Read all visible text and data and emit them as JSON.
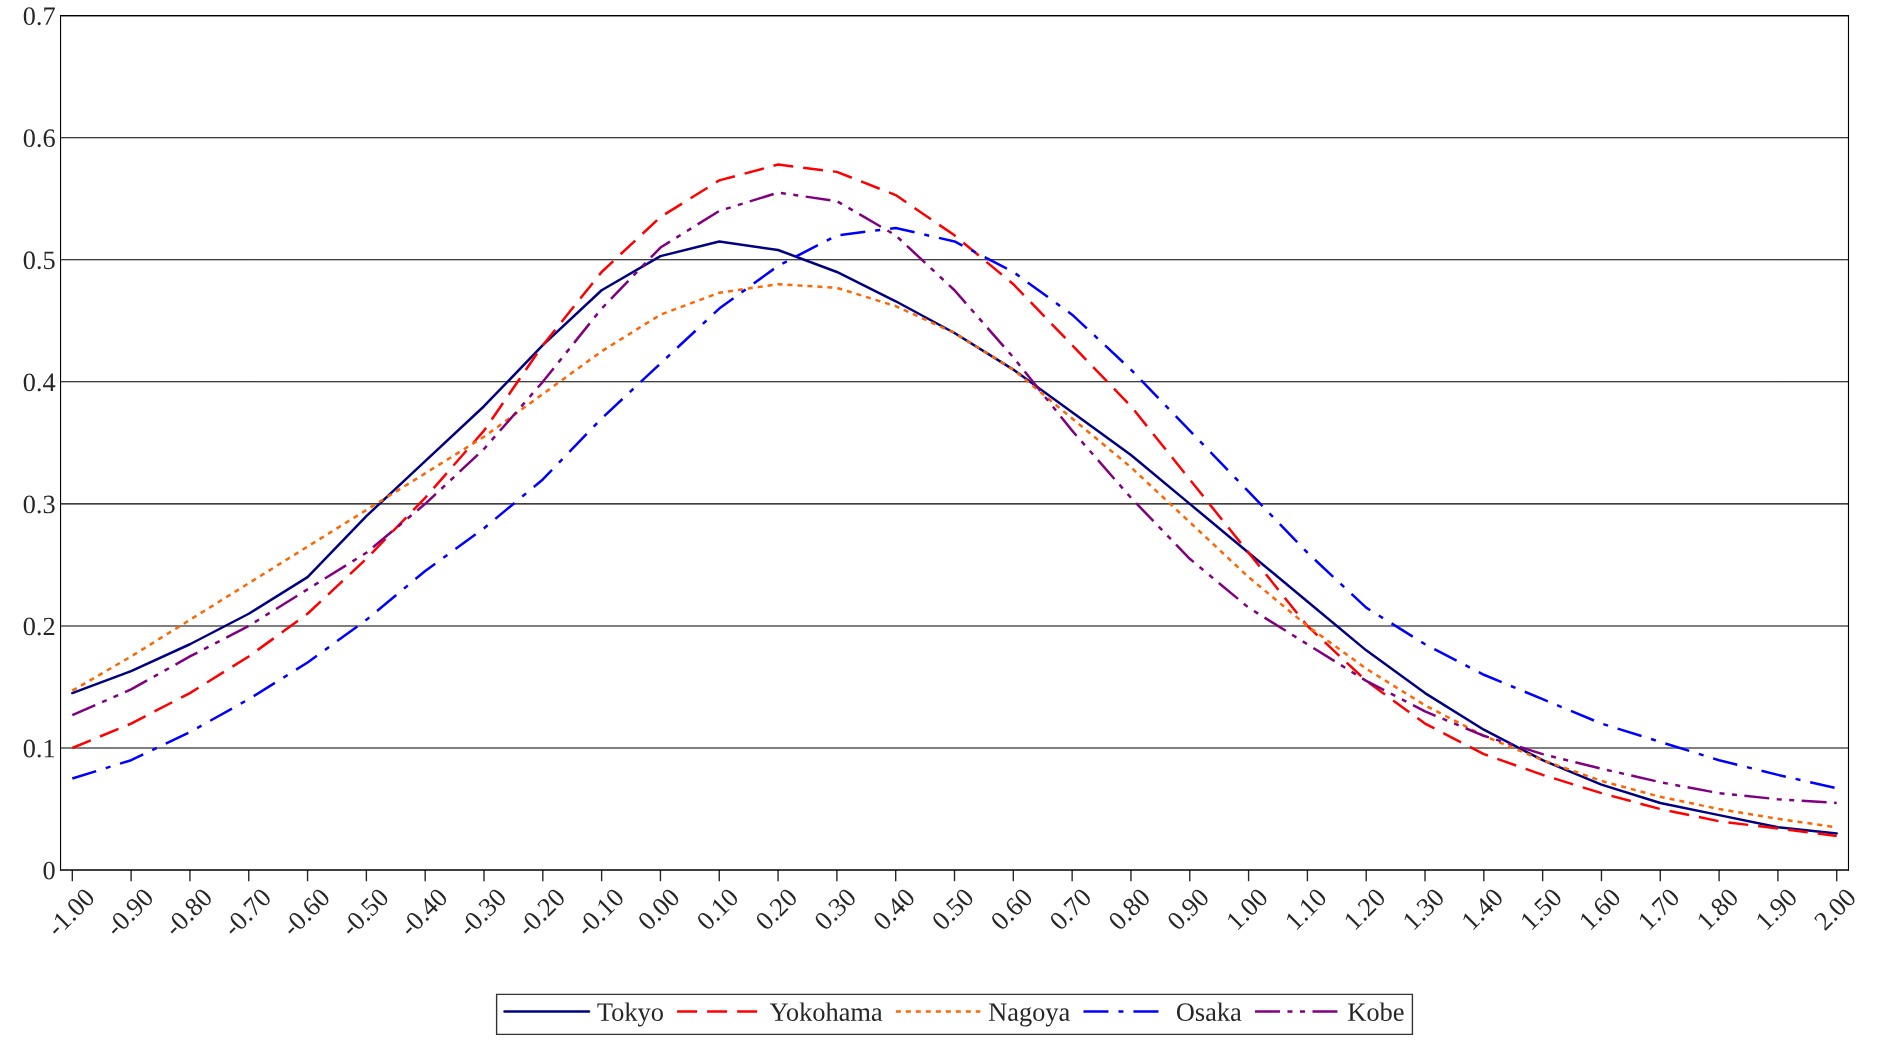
{
  "chart_data": {
    "type": "line",
    "x": [
      -1.0,
      -0.9,
      -0.8,
      -0.7,
      -0.6,
      -0.5,
      -0.4,
      -0.3,
      -0.2,
      -0.1,
      0.0,
      0.1,
      0.2,
      0.3,
      0.4,
      0.5,
      0.6,
      0.7,
      0.8,
      0.9,
      1.0,
      1.1,
      1.2,
      1.3,
      1.4,
      1.5,
      1.6,
      1.7,
      1.8,
      1.9,
      2.0
    ],
    "series": [
      {
        "name": "Tokyo",
        "color": "#000080",
        "line_style": "solid",
        "values": [
          0.145,
          0.163,
          0.185,
          0.21,
          0.24,
          0.29,
          0.335,
          0.38,
          0.43,
          0.475,
          0.503,
          0.515,
          0.508,
          0.49,
          0.466,
          0.44,
          0.41,
          0.375,
          0.34,
          0.3,
          0.26,
          0.22,
          0.18,
          0.145,
          0.115,
          0.09,
          0.07,
          0.055,
          0.045,
          0.035,
          0.03
        ]
      },
      {
        "name": "Yokohama",
        "color": "#ff0000",
        "line_style": "dashed",
        "values": [
          0.1,
          0.12,
          0.145,
          0.175,
          0.21,
          0.255,
          0.305,
          0.36,
          0.43,
          0.49,
          0.535,
          0.565,
          0.578,
          0.572,
          0.553,
          0.52,
          0.48,
          0.43,
          0.38,
          0.32,
          0.26,
          0.2,
          0.155,
          0.12,
          0.095,
          0.078,
          0.063,
          0.05,
          0.04,
          0.034,
          0.028
        ]
      },
      {
        "name": "Nagoya",
        "color": "#ff6600",
        "line_style": "dotted",
        "values": [
          0.147,
          0.175,
          0.205,
          0.235,
          0.265,
          0.295,
          0.325,
          0.355,
          0.39,
          0.425,
          0.455,
          0.473,
          0.48,
          0.477,
          0.462,
          0.44,
          0.41,
          0.37,
          0.33,
          0.285,
          0.24,
          0.2,
          0.165,
          0.135,
          0.11,
          0.09,
          0.073,
          0.06,
          0.05,
          0.042,
          0.035
        ]
      },
      {
        "name": "Osaka",
        "color": "#0000ff",
        "line_style": "dashdot",
        "values": [
          0.075,
          0.09,
          0.113,
          0.14,
          0.17,
          0.205,
          0.245,
          0.28,
          0.32,
          0.37,
          0.415,
          0.46,
          0.495,
          0.52,
          0.526,
          0.515,
          0.49,
          0.455,
          0.41,
          0.36,
          0.31,
          0.26,
          0.215,
          0.185,
          0.16,
          0.14,
          0.12,
          0.105,
          0.09,
          0.078,
          0.067
        ]
      },
      {
        "name": "Kobe",
        "color": "#800080",
        "line_style": "dashdotdot",
        "values": [
          0.127,
          0.148,
          0.175,
          0.2,
          0.23,
          0.26,
          0.3,
          0.345,
          0.4,
          0.46,
          0.51,
          0.54,
          0.555,
          0.548,
          0.52,
          0.475,
          0.42,
          0.36,
          0.305,
          0.255,
          0.215,
          0.185,
          0.155,
          0.13,
          0.11,
          0.095,
          0.083,
          0.072,
          0.063,
          0.058,
          0.055
        ]
      }
    ],
    "xlim": [
      -1.02,
      2.02
    ],
    "xticks": [
      {
        "value": -1.0,
        "label": "-1.00"
      },
      {
        "value": -0.9,
        "label": "-0.90"
      },
      {
        "value": -0.8,
        "label": "-0.80"
      },
      {
        "value": -0.7,
        "label": "-0.70"
      },
      {
        "value": -0.6,
        "label": "-0.60"
      },
      {
        "value": -0.5,
        "label": "-0.50"
      },
      {
        "value": -0.4,
        "label": "-0.40"
      },
      {
        "value": -0.3,
        "label": "-0.30"
      },
      {
        "value": -0.2,
        "label": "-0.20"
      },
      {
        "value": -0.1,
        "label": "-0.10"
      },
      {
        "value": 0.0,
        "label": "0.00"
      },
      {
        "value": 0.1,
        "label": "0.10"
      },
      {
        "value": 0.2,
        "label": "0.20"
      },
      {
        "value": 0.3,
        "label": "0.30"
      },
      {
        "value": 0.4,
        "label": "0.40"
      },
      {
        "value": 0.5,
        "label": "0.50"
      },
      {
        "value": 0.6,
        "label": "0.60"
      },
      {
        "value": 0.7,
        "label": "0.70"
      },
      {
        "value": 0.8,
        "label": "0.80"
      },
      {
        "value": 0.9,
        "label": "0.90"
      },
      {
        "value": 1.0,
        "label": "1.00"
      },
      {
        "value": 1.1,
        "label": "1.10"
      },
      {
        "value": 1.2,
        "label": "1.20"
      },
      {
        "value": 1.3,
        "label": "1.30"
      },
      {
        "value": 1.4,
        "label": "1.40"
      },
      {
        "value": 1.5,
        "label": "1.50"
      },
      {
        "value": 1.6,
        "label": "1.60"
      },
      {
        "value": 1.7,
        "label": "1.70"
      },
      {
        "value": 1.8,
        "label": "1.80"
      },
      {
        "value": 1.9,
        "label": "1.90"
      },
      {
        "value": 2.0,
        "label": "2.00"
      }
    ],
    "ylim": [
      0,
      0.7
    ],
    "yticks": [
      0,
      0.1,
      0.2,
      0.3,
      0.4,
      0.5,
      0.6,
      0.7
    ],
    "grid": "y",
    "legend": "bottom",
    "marker": "none"
  }
}
